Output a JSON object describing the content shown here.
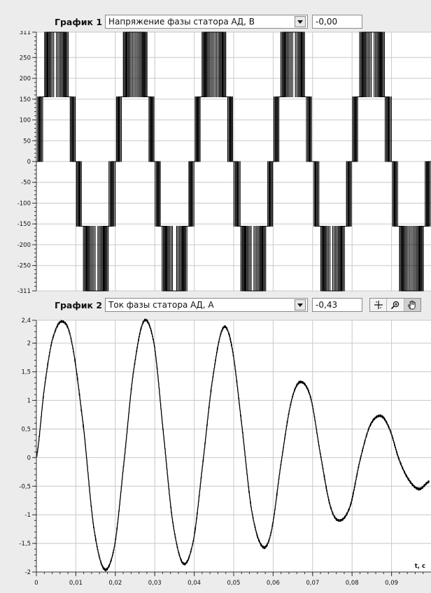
{
  "graph1": {
    "label": "График 1",
    "selector_value": "Напряжение фазы статора АД, В",
    "cursor_value": "-0,00"
  },
  "graph2": {
    "label": "График 2",
    "selector_value": "Ток фазы статора АД, А",
    "cursor_value": "-0,43"
  },
  "tools": {
    "icons": [
      "crosshair-icon",
      "zoom-icon",
      "hand-pan-icon"
    ]
  },
  "chart_data": [
    {
      "type": "line",
      "ylim": [
        -311,
        311
      ],
      "y_ticks": [
        "311",
        "250",
        "200",
        "150",
        "100",
        "50",
        "0",
        "-50",
        "-100",
        "-150",
        "-200",
        "-250",
        "-311"
      ],
      "y_tick_values": [
        311,
        250,
        200,
        150,
        100,
        50,
        0,
        -50,
        -100,
        -150,
        -200,
        -250,
        -311
      ],
      "levels": [
        311,
        155.5,
        0,
        -155.5,
        -311
      ],
      "xlim": [
        0,
        0.1
      ],
      "fundamental_period_s": 0.02,
      "grid": true
    },
    {
      "type": "line",
      "ylim": [
        -2,
        2.4
      ],
      "y_ticks": [
        "2,4",
        "2",
        "1,5",
        "1",
        "0,5",
        "0",
        "-0,5",
        "-1",
        "-1,5",
        "-2"
      ],
      "y_tick_values": [
        2.4,
        2,
        1.5,
        1,
        0.5,
        0,
        -0.5,
        -1,
        -1.5,
        -2
      ],
      "xlim": [
        0,
        0.1
      ],
      "x_ticks": [
        "0",
        "0,01",
        "0,02",
        "0,03",
        "0,04",
        "0,05",
        "0,06",
        "0,07",
        "0,08",
        "0,09"
      ],
      "x_tick_values": [
        0,
        0.01,
        0.02,
        0.03,
        0.04,
        0.05,
        0.06,
        0.07,
        0.08,
        0.09
      ],
      "xlabel": "t, c",
      "grid": true,
      "x": [
        0,
        0.002,
        0.004,
        0.0065,
        0.009,
        0.012,
        0.0145,
        0.0172,
        0.0198,
        0.022,
        0.0245,
        0.0272,
        0.0298,
        0.032,
        0.0345,
        0.0372,
        0.0398,
        0.042,
        0.0445,
        0.0472,
        0.0495,
        0.052,
        0.0545,
        0.0572,
        0.0595,
        0.062,
        0.0645,
        0.0668,
        0.0695,
        0.072,
        0.0745,
        0.0768,
        0.0795,
        0.082,
        0.0845,
        0.0872,
        0.0895,
        0.092,
        0.0945,
        0.097,
        0.0995
      ],
      "y": [
        0,
        1.2,
        2.05,
        2.38,
        2.0,
        0.5,
        -1.2,
        -1.95,
        -1.55,
        -0.2,
        1.45,
        2.38,
        2.0,
        0.55,
        -1.1,
        -1.85,
        -1.45,
        -0.2,
        1.3,
        2.25,
        1.95,
        0.6,
        -0.9,
        -1.55,
        -1.3,
        -0.1,
        0.95,
        1.32,
        1.05,
        0.05,
        -0.85,
        -1.1,
        -0.85,
        -0.05,
        0.55,
        0.73,
        0.5,
        -0.05,
        -0.4,
        -0.55,
        -0.42
      ]
    }
  ]
}
